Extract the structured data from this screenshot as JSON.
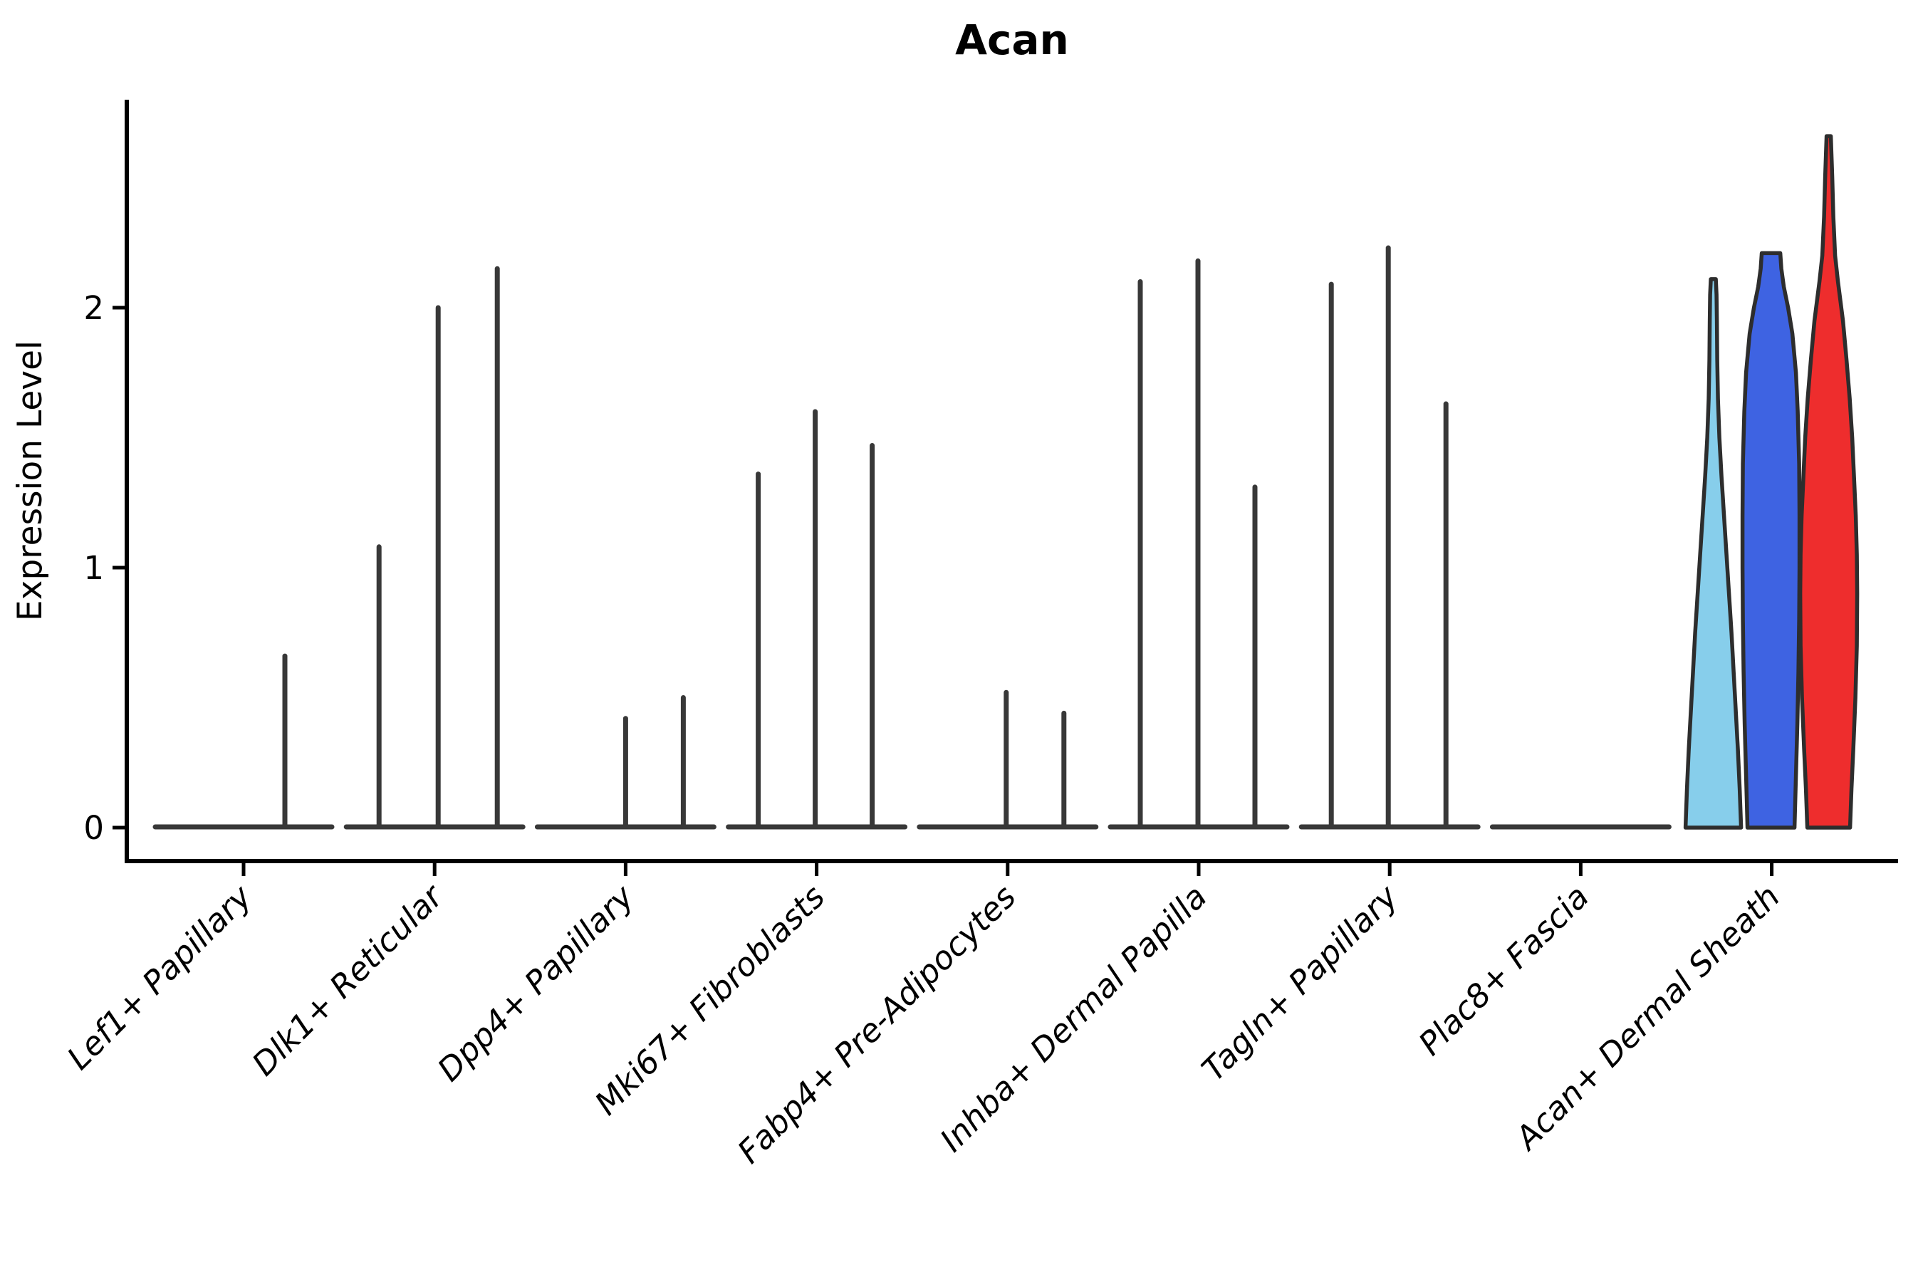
{
  "chart_data": {
    "type": "violin",
    "title": "Acan",
    "ylabel": "Expression Level",
    "yticks": [
      0,
      1,
      2
    ],
    "ylim": [
      0,
      2.8
    ],
    "grid": false,
    "legend_position": "none",
    "split_colors": [
      "#87CEEB",
      "#3E63E2",
      "#EE2D2D"
    ],
    "outline_color": "#2d2d2d",
    "spike_color": "#383838",
    "axis_color": "#000000",
    "categories": [
      {
        "label": "Lef1+ Papillary",
        "baseline": true,
        "spikes": [
          {
            "dx": 58,
            "value": 0.66
          }
        ]
      },
      {
        "label": "Dlk1+ Reticular",
        "baseline": true,
        "spikes": [
          {
            "dx": -78,
            "value": 1.08
          },
          {
            "dx": 5,
            "value": 2.0
          },
          {
            "dx": 88,
            "value": 2.15
          }
        ]
      },
      {
        "label": "Dpp4+ Papillary",
        "baseline": true,
        "spikes": [
          {
            "dx": 0,
            "value": 0.42
          },
          {
            "dx": 81,
            "value": 0.5
          }
        ]
      },
      {
        "label": "Mki67+ Fibroblasts",
        "baseline": true,
        "spikes": [
          {
            "dx": -82,
            "value": 1.36
          },
          {
            "dx": -2,
            "value": 1.6
          },
          {
            "dx": 78,
            "value": 1.47
          }
        ]
      },
      {
        "label": "Fabp4+ Pre-Adipocytes",
        "baseline": true,
        "spikes": [
          {
            "dx": -2,
            "value": 0.52
          },
          {
            "dx": 79,
            "value": 0.44
          }
        ]
      },
      {
        "label": "Inhba+ Dermal Papilla",
        "baseline": true,
        "spikes": [
          {
            "dx": -82,
            "value": 2.1
          },
          {
            "dx": -1,
            "value": 2.18
          },
          {
            "dx": 79,
            "value": 1.31
          }
        ]
      },
      {
        "label": "Tagln+ Papillary",
        "baseline": true,
        "spikes": [
          {
            "dx": -82,
            "value": 2.09
          },
          {
            "dx": -2,
            "value": 2.23
          },
          {
            "dx": 79,
            "value": 1.63
          }
        ]
      },
      {
        "label": "Plac8+ Fascia",
        "baseline": true,
        "spikes": []
      },
      {
        "label": "Acan+ Dermal Sheath",
        "baseline": false,
        "spikes": [],
        "violins": [
          {
            "color": "#87CEEB",
            "dx": -82,
            "max": 2.11,
            "profile": [
              [
                0,
                39
              ],
              [
                0.15,
                37
              ],
              [
                0.3,
                34.5
              ],
              [
                0.45,
                31.5
              ],
              [
                0.6,
                28.5
              ],
              [
                0.75,
                25.5
              ],
              [
                0.9,
                22
              ],
              [
                1.05,
                18.5
              ],
              [
                1.2,
                15
              ],
              [
                1.35,
                11.5
              ],
              [
                1.5,
                8.5
              ],
              [
                1.65,
                6.5
              ],
              [
                1.8,
                5.5
              ],
              [
                1.95,
                5
              ],
              [
                2.05,
                4.5
              ],
              [
                2.11,
                3.5
              ]
            ]
          },
          {
            "color": "#3E63E2",
            "dx": -1,
            "max": 2.21,
            "profile": [
              [
                0,
                33
              ],
              [
                0.1,
                34
              ],
              [
                0.25,
                35.5
              ],
              [
                0.4,
                37
              ],
              [
                0.6,
                38.5
              ],
              [
                0.8,
                39.5
              ],
              [
                1.0,
                40
              ],
              [
                1.2,
                40
              ],
              [
                1.4,
                39.5
              ],
              [
                1.6,
                37.5
              ],
              [
                1.75,
                35
              ],
              [
                1.9,
                30
              ],
              [
                2.0,
                24
              ],
              [
                2.08,
                18
              ],
              [
                2.15,
                14.5
              ],
              [
                2.21,
                13
              ]
            ]
          },
          {
            "color": "#EE2D2D",
            "dx": 80,
            "max": 2.66,
            "profile": [
              [
                0,
                30
              ],
              [
                0.15,
                32
              ],
              [
                0.3,
                34.5
              ],
              [
                0.5,
                37.5
              ],
              [
                0.7,
                39.5
              ],
              [
                0.9,
                40
              ],
              [
                1.05,
                39.5
              ],
              [
                1.2,
                38
              ],
              [
                1.35,
                35.5
              ],
              [
                1.5,
                33
              ],
              [
                1.65,
                29.5
              ],
              [
                1.8,
                25
              ],
              [
                1.95,
                20
              ],
              [
                2.1,
                13
              ],
              [
                2.2,
                9
              ],
              [
                2.35,
                6.5
              ],
              [
                2.5,
                5
              ],
              [
                2.66,
                3
              ]
            ]
          }
        ]
      }
    ]
  }
}
